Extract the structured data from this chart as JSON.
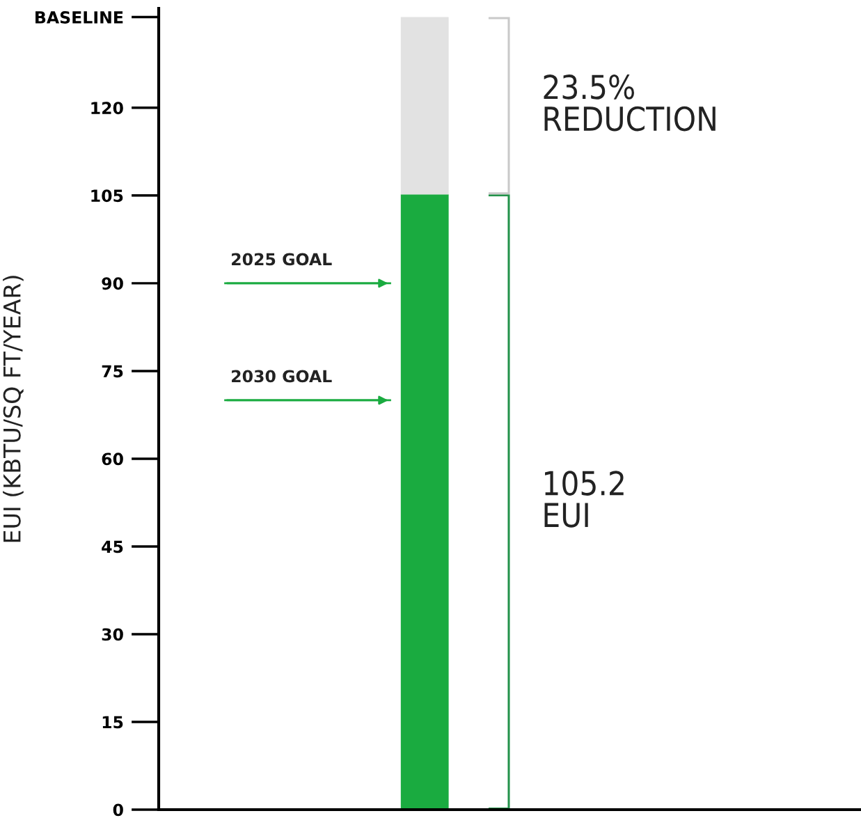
{
  "chart_data": {
    "type": "bar",
    "stacked": true,
    "ylabel": "EUI (KBTU/SQ FT/YEAR)",
    "categories": [
      null
    ],
    "series": [
      {
        "color": "#1aab40",
        "values": [
          105.2
        ]
      },
      {
        "color": "#e2e2e2",
        "values": [
          30.3
        ]
      }
    ],
    "ylim": [
      0,
      137
    ],
    "yticks": [
      0,
      15,
      30,
      45,
      60,
      75,
      90,
      105,
      120,
      {
        "value": 135.5,
        "label": "BASELINE"
      }
    ],
    "ref_lines": [
      {
        "axis": "y",
        "value": 90,
        "label": "2025 GOAL",
        "color": "#1aab40"
      },
      {
        "axis": "y",
        "value": 70,
        "label": "2030 GOAL",
        "color": "#1aab40"
      }
    ],
    "annotations": [
      "105.2\nEUI",
      "23.5%\nREDUCTION"
    ],
    "grid": false,
    "legend": false
  }
}
